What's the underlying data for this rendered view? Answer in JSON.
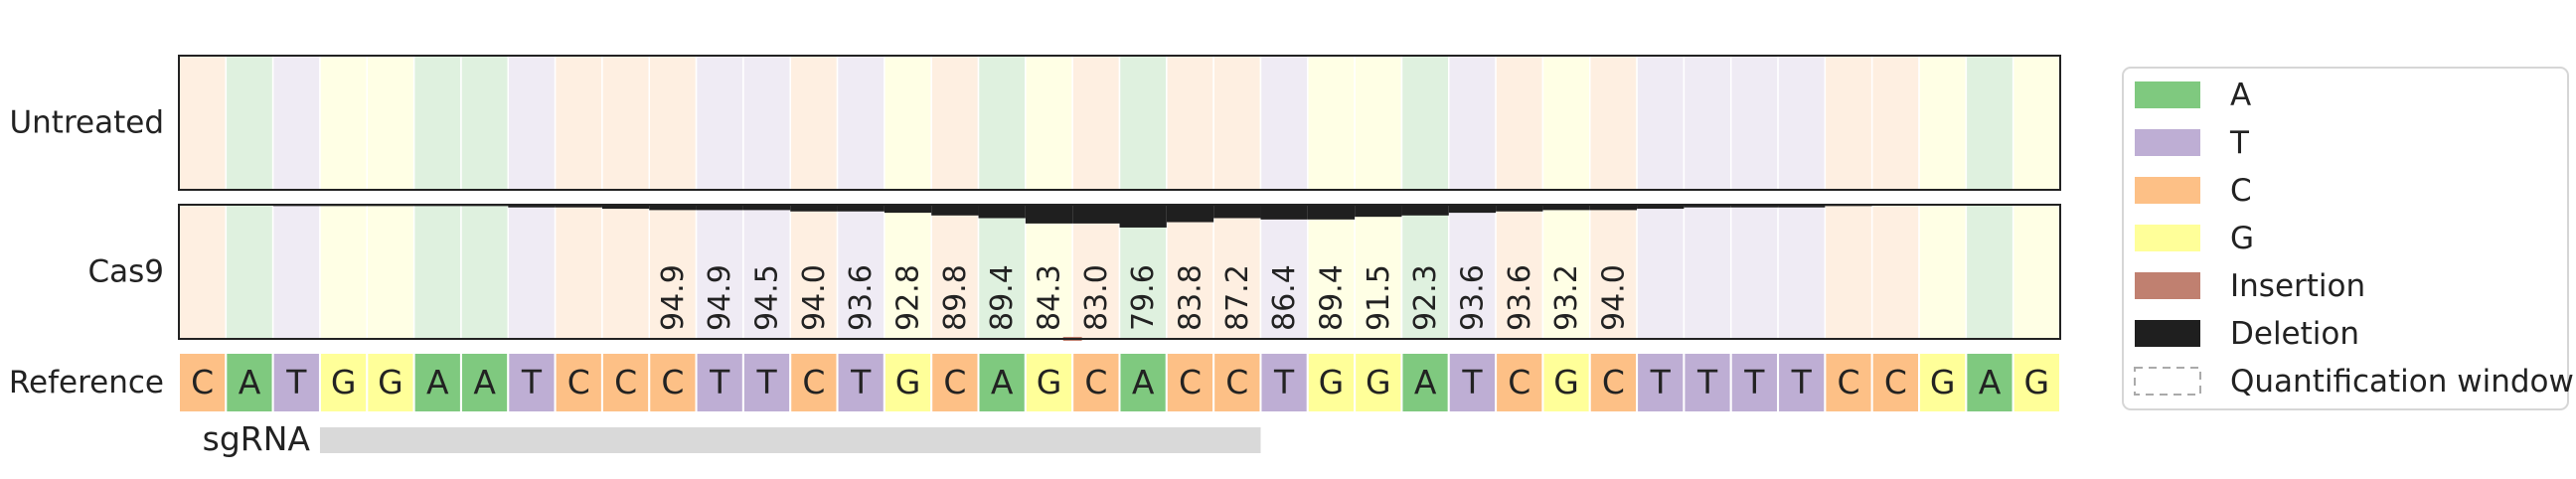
{
  "colors": {
    "A": "#7fc97f",
    "T": "#beaed4",
    "C": "#fdc086",
    "G": "#ffff99",
    "insertion": "#c08070",
    "deletion": "#1f1f1f",
    "sgRNA": "#d9d9d9",
    "background_alpha": 0.25
  },
  "chart_data": {
    "type": "heatmap",
    "row_labels": [
      "Untreated",
      "Cas9"
    ],
    "reference_label": "Reference",
    "sgrna_label": "sgRNA",
    "reference_sequence": [
      "C",
      "A",
      "T",
      "G",
      "G",
      "A",
      "A",
      "T",
      "C",
      "C",
      "C",
      "T",
      "T",
      "C",
      "T",
      "G",
      "C",
      "A",
      "G",
      "C",
      "A",
      "C",
      "C",
      "T",
      "G",
      "G",
      "A",
      "T",
      "C",
      "G",
      "C",
      "T",
      "T",
      "T",
      "T",
      "C",
      "C",
      "G",
      "A",
      "G"
    ],
    "sgrna_span": [
      3,
      22
    ],
    "series": [
      {
        "name": "Untreated",
        "deletion_frequency": [
          0,
          0,
          0,
          0,
          0,
          0,
          0,
          0,
          0,
          0,
          0,
          0,
          0,
          0,
          0,
          0,
          0,
          0,
          0,
          0,
          0,
          0,
          0,
          0,
          0,
          0,
          0,
          0,
          0,
          0,
          0,
          0,
          0,
          0,
          0,
          0,
          0,
          0,
          0,
          0
        ],
        "insertion_frequency": [
          0,
          0,
          0,
          0,
          0,
          0,
          0,
          0,
          0,
          0,
          0,
          0,
          0,
          0,
          0,
          0,
          0,
          0,
          0,
          0,
          0,
          0,
          0,
          0,
          0,
          0,
          0,
          0,
          0,
          0,
          0,
          0,
          0,
          0,
          0,
          0,
          0,
          0,
          0,
          0
        ]
      },
      {
        "name": "Cas9",
        "deletion_frequency": [
          0,
          0,
          1,
          1,
          1,
          1,
          1,
          2,
          2,
          3,
          4,
          4,
          4,
          5,
          5,
          6,
          8,
          10,
          14,
          14,
          17,
          13,
          10,
          11,
          11,
          9,
          8,
          6,
          5,
          4,
          4,
          3,
          2,
          2,
          2,
          1,
          0,
          0,
          0,
          0
        ],
        "insertion_frequency": [
          0,
          0,
          0,
          0,
          0,
          0,
          0,
          0,
          0,
          0,
          0,
          0,
          0,
          0,
          0,
          0,
          0,
          0,
          0,
          0.5,
          0,
          0,
          0,
          0,
          0,
          0,
          0,
          0,
          0,
          0,
          0,
          0,
          0,
          0,
          0,
          0,
          0,
          0,
          0,
          0
        ],
        "reference_percent": [
          null,
          null,
          null,
          null,
          null,
          null,
          null,
          null,
          null,
          null,
          94.9,
          94.9,
          94.5,
          94.0,
          93.6,
          92.8,
          89.8,
          89.4,
          84.3,
          83.0,
          79.6,
          83.8,
          87.2,
          86.4,
          89.4,
          91.5,
          92.3,
          93.6,
          93.6,
          93.2,
          94.0,
          null,
          null,
          null,
          null,
          null,
          null,
          null,
          null,
          null
        ]
      }
    ],
    "legend": {
      "position": "right",
      "items": [
        {
          "label": "A",
          "color_key": "A",
          "style": "solid"
        },
        {
          "label": "T",
          "color_key": "T",
          "style": "solid"
        },
        {
          "label": "C",
          "color_key": "C",
          "style": "solid"
        },
        {
          "label": "G",
          "color_key": "G",
          "style": "solid"
        },
        {
          "label": "Insertion",
          "color_key": "insertion",
          "style": "solid"
        },
        {
          "label": "Deletion",
          "color_key": "deletion",
          "style": "solid"
        },
        {
          "label": "Quantification window",
          "color_key": "",
          "style": "dashed"
        }
      ]
    },
    "grid": false
  }
}
